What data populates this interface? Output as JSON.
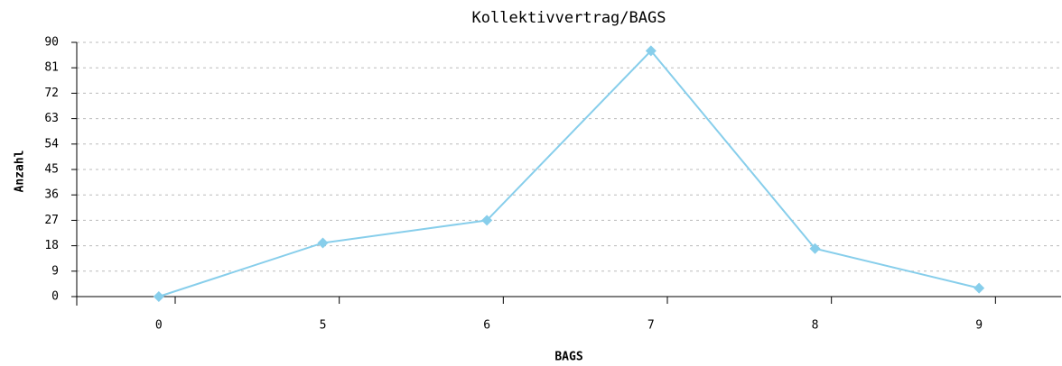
{
  "chart_data": {
    "type": "line",
    "title": "Kollektivvertrag/BAGS",
    "x_label": "BAGS",
    "y_label": "Anzahl",
    "categories": [
      "0",
      "5",
      "6",
      "7",
      "8",
      "9"
    ],
    "series": [
      {
        "name": "Anzahl",
        "color": "#87ceeb",
        "values": [
          0,
          19,
          27,
          87,
          17,
          3
        ]
      }
    ],
    "ylim": [
      0,
      90
    ],
    "yticks": [
      0,
      9,
      18,
      27,
      36,
      45,
      54,
      63,
      72,
      81,
      90
    ],
    "grid": true
  }
}
